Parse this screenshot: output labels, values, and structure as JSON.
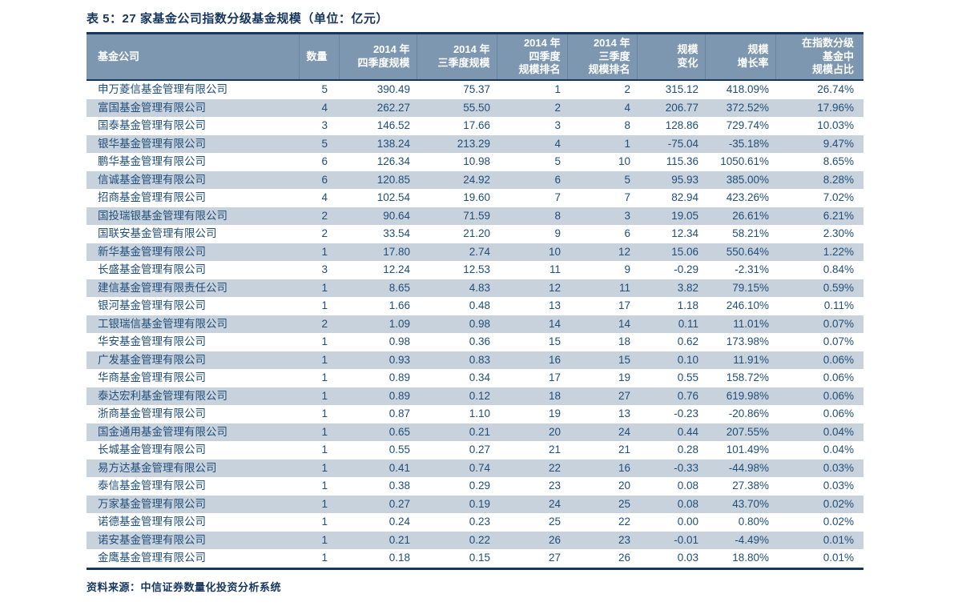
{
  "title": "表 5：27 家基金公司指数分级基金规模（单位：亿元）",
  "source": "资料来源：中信证券数量化投资分析系统",
  "colors": {
    "title": "#17365D",
    "header_bg": "#7D97B1",
    "header_text": "#FFFFFF",
    "row_alt": "#C8D2DD",
    "row": "#FFFFFF",
    "cell": "#1F4E79",
    "border": "#17365D",
    "header_sep": "#68859F"
  },
  "table": {
    "columns": [
      "基金公司",
      "数量",
      "2014 年\n四季度规模",
      "2014 年\n三季度规模",
      "2014 年\n四季度\n规模排名",
      "2014 年\n三季度\n规模排名",
      "规模\n变化",
      "规模\n增长率",
      "在指数分级\n基金中\n规模占比"
    ],
    "rows": [
      [
        "申万菱信基金管理有限公司",
        "5",
        "390.49",
        "75.37",
        "1",
        "2",
        "315.12",
        "418.09%",
        "26.74%"
      ],
      [
        "富国基金管理有限公司",
        "4",
        "262.27",
        "55.50",
        "2",
        "4",
        "206.77",
        "372.52%",
        "17.96%"
      ],
      [
        "国泰基金管理有限公司",
        "3",
        "146.52",
        "17.66",
        "3",
        "8",
        "128.86",
        "729.74%",
        "10.03%"
      ],
      [
        "银华基金管理有限公司",
        "5",
        "138.24",
        "213.29",
        "4",
        "1",
        "-75.04",
        "-35.18%",
        "9.47%"
      ],
      [
        "鹏华基金管理有限公司",
        "6",
        "126.34",
        "10.98",
        "5",
        "10",
        "115.36",
        "1050.61%",
        "8.65%"
      ],
      [
        "信诚基金管理有限公司",
        "6",
        "120.85",
        "24.92",
        "6",
        "5",
        "95.93",
        "385.00%",
        "8.28%"
      ],
      [
        "招商基金管理有限公司",
        "4",
        "102.54",
        "19.60",
        "7",
        "7",
        "82.94",
        "423.26%",
        "7.02%"
      ],
      [
        "国投瑞银基金管理有限公司",
        "2",
        "90.64",
        "71.59",
        "8",
        "3",
        "19.05",
        "26.61%",
        "6.21%"
      ],
      [
        "国联安基金管理有限公司",
        "2",
        "33.54",
        "21.20",
        "9",
        "6",
        "12.34",
        "58.21%",
        "2.30%"
      ],
      [
        "新华基金管理有限公司",
        "1",
        "17.80",
        "2.74",
        "10",
        "12",
        "15.06",
        "550.64%",
        "1.22%"
      ],
      [
        "长盛基金管理有限公司",
        "3",
        "12.24",
        "12.53",
        "11",
        "9",
        "-0.29",
        "-2.31%",
        "0.84%"
      ],
      [
        "建信基金管理有限责任公司",
        "1",
        "8.65",
        "4.83",
        "12",
        "11",
        "3.82",
        "79.15%",
        "0.59%"
      ],
      [
        "银河基金管理有限公司",
        "1",
        "1.66",
        "0.48",
        "13",
        "17",
        "1.18",
        "246.10%",
        "0.11%"
      ],
      [
        "工银瑞信基金管理有限公司",
        "2",
        "1.09",
        "0.98",
        "14",
        "14",
        "0.11",
        "11.01%",
        "0.07%"
      ],
      [
        "华安基金管理有限公司",
        "1",
        "0.98",
        "0.36",
        "15",
        "18",
        "0.62",
        "173.98%",
        "0.07%"
      ],
      [
        "广发基金管理有限公司",
        "1",
        "0.93",
        "0.83",
        "16",
        "15",
        "0.10",
        "11.91%",
        "0.06%"
      ],
      [
        "华商基金管理有限公司",
        "1",
        "0.89",
        "0.34",
        "17",
        "19",
        "0.55",
        "158.72%",
        "0.06%"
      ],
      [
        "泰达宏利基金管理有限公司",
        "1",
        "0.89",
        "0.12",
        "18",
        "27",
        "0.76",
        "619.98%",
        "0.06%"
      ],
      [
        "浙商基金管理有限公司",
        "1",
        "0.87",
        "1.10",
        "19",
        "13",
        "-0.23",
        "-20.86%",
        "0.06%"
      ],
      [
        "国金通用基金管理有限公司",
        "1",
        "0.65",
        "0.21",
        "20",
        "24",
        "0.44",
        "207.55%",
        "0.04%"
      ],
      [
        "长城基金管理有限公司",
        "1",
        "0.55",
        "0.27",
        "21",
        "21",
        "0.28",
        "101.49%",
        "0.04%"
      ],
      [
        "易方达基金管理有限公司",
        "1",
        "0.41",
        "0.74",
        "22",
        "16",
        "-0.33",
        "-44.98%",
        "0.03%"
      ],
      [
        "泰信基金管理有限公司",
        "1",
        "0.38",
        "0.29",
        "23",
        "20",
        "0.08",
        "27.38%",
        "0.03%"
      ],
      [
        "万家基金管理有限公司",
        "1",
        "0.27",
        "0.19",
        "24",
        "25",
        "0.08",
        "43.70%",
        "0.02%"
      ],
      [
        "诺德基金管理有限公司",
        "1",
        "0.24",
        "0.23",
        "25",
        "22",
        "0.00",
        "0.80%",
        "0.02%"
      ],
      [
        "诺安基金管理有限公司",
        "1",
        "0.21",
        "0.22",
        "26",
        "23",
        "-0.01",
        "-4.49%",
        "0.01%"
      ],
      [
        "金鹰基金管理有限公司",
        "1",
        "0.18",
        "0.15",
        "27",
        "26",
        "0.03",
        "18.80%",
        "0.01%"
      ]
    ]
  }
}
